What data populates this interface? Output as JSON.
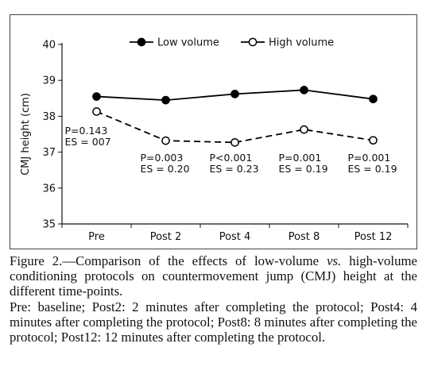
{
  "chart_data": {
    "type": "line",
    "categories": [
      "Pre",
      "Post 2",
      "Post 4",
      "Post 8",
      "Post 12"
    ],
    "ylabel": "CMJ height (cm)",
    "xlabel": "",
    "ylim": [
      35,
      40
    ],
    "yticks": [
      35,
      36,
      37,
      38,
      39,
      40
    ],
    "grid": false,
    "legend_position": "top",
    "series": [
      {
        "name": "Low volume",
        "values": [
          38.55,
          38.45,
          38.62,
          38.73,
          38.48
        ],
        "line": "solid",
        "marker": "filled",
        "color": "#000000"
      },
      {
        "name": "High volume",
        "values": [
          38.13,
          37.32,
          37.27,
          37.63,
          37.33
        ],
        "line": "dashed",
        "marker": "open",
        "color": "#000000"
      }
    ],
    "annotations": [
      {
        "category": "Pre",
        "p": "P=0.143",
        "es": "ES = 007"
      },
      {
        "category": "Post 2",
        "p": "P=0.003",
        "es": "ES = 0.20"
      },
      {
        "category": "Post 4",
        "p": "P<0.001",
        "es": "ES = 0.23"
      },
      {
        "category": "Post 8",
        "p": "P=0.001",
        "es": "ES = 0.19"
      },
      {
        "category": "Post 12",
        "p": "P=0.001",
        "es": "ES = 0.19"
      }
    ]
  },
  "caption": {
    "figure_label": "Figure 2.",
    "line1_text": "—Comparison of the effects of low-volume ",
    "vs": "vs.",
    "line1_rest": " high-volume conditioning protocols on countermovement jump (CMJ) height at the different time-points.",
    "legend_text": "Pre: baseline; Post2: 2 minutes after completing the protocol; Post4: 4 minutes after completing the protocol; Post8: 8 minutes after completing the protocol; Post12: 12 minutes after completing the protocol."
  }
}
